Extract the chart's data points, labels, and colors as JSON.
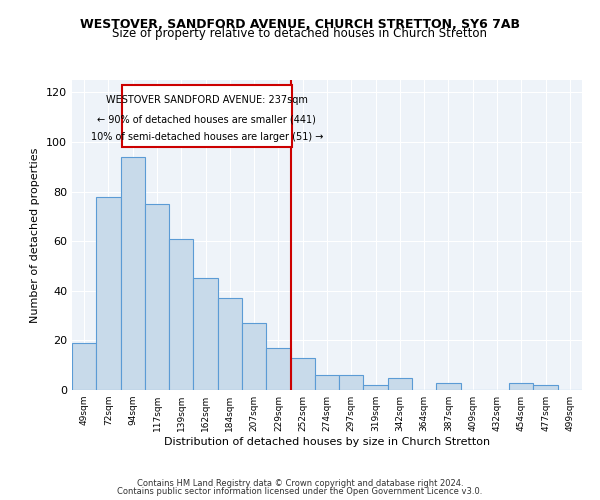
{
  "title": "WESTOVER, SANDFORD AVENUE, CHURCH STRETTON, SY6 7AB",
  "subtitle": "Size of property relative to detached houses in Church Stretton",
  "xlabel": "Distribution of detached houses by size in Church Stretton",
  "ylabel": "Number of detached properties",
  "footer_line1": "Contains HM Land Registry data © Crown copyright and database right 2024.",
  "footer_line2": "Contains public sector information licensed under the Open Government Licence v3.0.",
  "bar_color": "#c8daea",
  "bar_edge_color": "#5b9bd5",
  "categories": [
    "49sqm",
    "72sqm",
    "94sqm",
    "117sqm",
    "139sqm",
    "162sqm",
    "184sqm",
    "207sqm",
    "229sqm",
    "252sqm",
    "274sqm",
    "297sqm",
    "319sqm",
    "342sqm",
    "364sqm",
    "387sqm",
    "409sqm",
    "432sqm",
    "454sqm",
    "477sqm",
    "499sqm"
  ],
  "values": [
    19,
    78,
    94,
    75,
    61,
    45,
    37,
    27,
    17,
    13,
    6,
    6,
    2,
    5,
    0,
    3,
    0,
    0,
    3,
    2,
    0
  ],
  "annotation_text_line1": "WESTOVER SANDFORD AVENUE: 237sqm",
  "annotation_text_line2": "← 90% of detached houses are smaller (441)",
  "annotation_text_line3": "10% of semi-detached houses are larger (51) →",
  "vline_color": "#cc0000",
  "vline_x_category_index": 8.5,
  "ylim": [
    0,
    125
  ],
  "yticks": [
    0,
    20,
    40,
    60,
    80,
    100,
    120
  ],
  "bg_color": "#eef3f9"
}
